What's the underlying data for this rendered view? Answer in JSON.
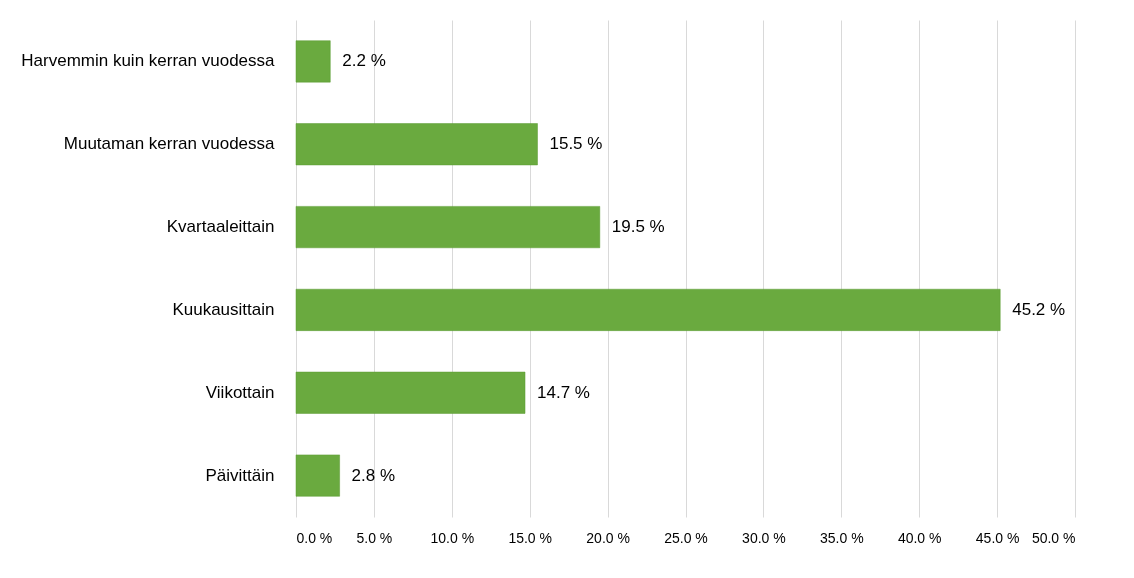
{
  "chart_data": {
    "type": "bar",
    "orientation": "horizontal",
    "categories": [
      "Harvemmin kuin kerran vuodessa",
      "Muutaman kerran vuodessa",
      "Kvartaaleittain",
      "Kuukausittain",
      "Viikottain",
      "Päivittäin"
    ],
    "values": [
      2.2,
      15.5,
      19.5,
      45.2,
      14.7,
      2.8
    ],
    "value_labels": [
      "2.2 %",
      "15.5 %",
      "19.5 %",
      "45.2 %",
      "14.7 %",
      "2.8 %"
    ],
    "color": "#6aaa3f",
    "xlim": [
      0,
      50
    ],
    "xticks": [
      {
        "value": 0,
        "label": "0.0 %"
      },
      {
        "value": 5,
        "label": "5.0 %"
      },
      {
        "value": 10,
        "label": "10.0 %"
      },
      {
        "value": 15,
        "label": "15.0 %"
      },
      {
        "value": 20,
        "label": "20.0 %"
      },
      {
        "value": 25,
        "label": "25.0 %"
      },
      {
        "value": 30,
        "label": "30.0 %"
      },
      {
        "value": 35,
        "label": "35.0 %"
      },
      {
        "value": 40,
        "label": "40.0 %"
      },
      {
        "value": 45,
        "label": "45.0 %"
      },
      {
        "value": 50,
        "label": "50.0 %"
      }
    ],
    "grid": "x"
  }
}
